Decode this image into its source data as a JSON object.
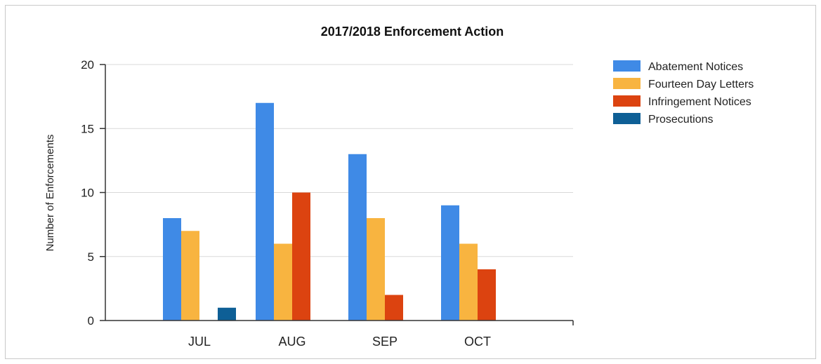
{
  "chart_data": {
    "type": "bar",
    "title": "2017/2018 Enforcement Action",
    "xlabel": "",
    "ylabel": "Number of Enforcements",
    "categories": [
      "JUL",
      "AUG",
      "SEP",
      "OCT"
    ],
    "series": [
      {
        "name": "Abatement Notices",
        "color": "#3f8ae6",
        "values": [
          8,
          17,
          13,
          9
        ]
      },
      {
        "name": "Fourteen Day Letters",
        "color": "#f8b440",
        "values": [
          7,
          6,
          8,
          6
        ]
      },
      {
        "name": "Infringement Notices",
        "color": "#dc4310",
        "values": [
          0,
          10,
          2,
          4
        ]
      },
      {
        "name": "Prosecutions",
        "color": "#0e5f96",
        "values": [
          1,
          0,
          0,
          0
        ]
      }
    ],
    "ylim": [
      0,
      20
    ],
    "yticks": [
      0,
      5,
      10,
      15,
      20
    ],
    "grid": true,
    "legend_position": "top-right"
  }
}
